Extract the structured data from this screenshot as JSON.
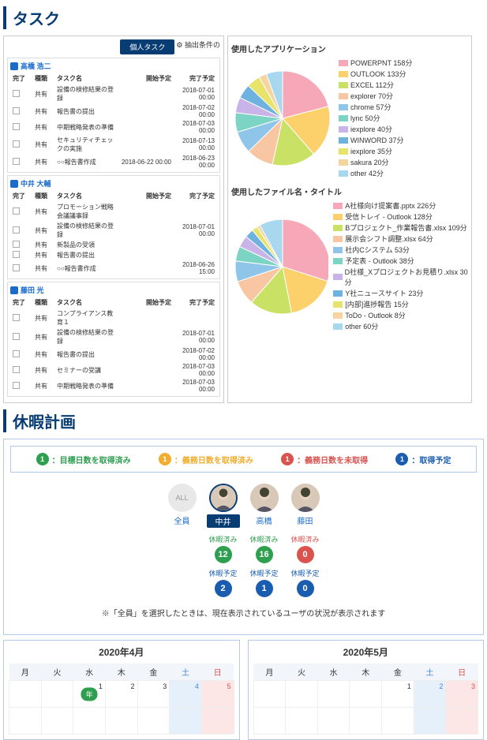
{
  "sections": {
    "task": "タスク",
    "vacation": "休暇計画"
  },
  "tabs": {
    "personal": "個人タスク",
    "filter": "⚙ 抽出条件の"
  },
  "headers": {
    "done": "完了",
    "type": "種類",
    "name": "タスク名",
    "start": "開始予定",
    "end": "完了予定"
  },
  "users": [
    {
      "name": "高橋 浩二",
      "rows": [
        {
          "type": "共有",
          "name": "設備の検修結果の登録",
          "start": "",
          "end": "2018-07-01 00:00"
        },
        {
          "type": "共有",
          "name": "報告書の提出",
          "start": "",
          "end": "2018-07-02 00:00"
        },
        {
          "type": "共有",
          "name": "中期戦略発表の準備",
          "start": "",
          "end": "2018-07-03 00:00"
        },
        {
          "type": "共有",
          "name": "セキュリティチェックの実施",
          "start": "",
          "end": "2018-07-13 00:00"
        },
        {
          "type": "共有",
          "name": "○○報告書作成",
          "start": "2018-06-22 00:00",
          "end": "2018-06-23 00:00"
        }
      ]
    },
    {
      "name": "中井 大輔",
      "rows": [
        {
          "type": "共有",
          "name": "プロモーション戦略会議議事録",
          "start": "",
          "end": ""
        },
        {
          "type": "共有",
          "name": "設備の検修結果の登録",
          "start": "",
          "end": "2018-07-01 00:00"
        },
        {
          "type": "共有",
          "name": "新製品の受領",
          "start": "",
          "end": ""
        },
        {
          "type": "共有",
          "name": "報告書の提出",
          "start": "",
          "end": ""
        },
        {
          "type": "共有",
          "name": "○○報告書作成",
          "start": "",
          "end": "2018-06-26 15:00"
        }
      ]
    },
    {
      "name": "藤田 光",
      "rows": [
        {
          "type": "共有",
          "name": "コンプライアンス教育１",
          "start": "",
          "end": ""
        },
        {
          "type": "共有",
          "name": "設備の検修結果の登録",
          "start": "",
          "end": "2018-07-01 00:00"
        },
        {
          "type": "共有",
          "name": "報告書の提出",
          "start": "",
          "end": "2018-07-02 00:00"
        },
        {
          "type": "共有",
          "name": "セミナーの受講",
          "start": "",
          "end": "2018-07-03 00:00"
        },
        {
          "type": "共有",
          "name": "中期戦略発表の準備",
          "start": "",
          "end": "2018-07-03 00:00"
        }
      ]
    }
  ],
  "charts": {
    "apps": {
      "title": "使用したアプリケーション",
      "items": [
        {
          "label": "POWERPNT 158分",
          "color": "#f7a8b8"
        },
        {
          "label": "OUTLOOK 133分",
          "color": "#fcd06b"
        },
        {
          "label": "EXCEL 112分",
          "color": "#c9e265"
        },
        {
          "label": "explorer 70分",
          "color": "#f9c6a3"
        },
        {
          "label": "chrome 57分",
          "color": "#8ec5e8"
        },
        {
          "label": "lync 50分",
          "color": "#7bd4c4"
        },
        {
          "label": "iexplore 40分",
          "color": "#c8b4e8"
        },
        {
          "label": "WINWORD 37分",
          "color": "#6eb3e0"
        },
        {
          "label": "iexplore 35分",
          "color": "#e7e36b"
        },
        {
          "label": "sakura 20分",
          "color": "#f6d4a0"
        },
        {
          "label": "other 42分",
          "color": "#a7d8ef"
        }
      ]
    },
    "files": {
      "title": "使用したファイル名・タイトル",
      "items": [
        {
          "label": "A社様向け提案書.pptx 226分",
          "color": "#f7a8b8"
        },
        {
          "label": "受信トレイ - Outlook 128分",
          "color": "#fcd06b"
        },
        {
          "label": "Bプロジェクト_作業報告書.xlsx 109分",
          "color": "#c9e265"
        },
        {
          "label": "展示会シフト調整.xlsx 64分",
          "color": "#f9c6a3"
        },
        {
          "label": "社内Cシステム 53分",
          "color": "#8ec5e8"
        },
        {
          "label": "予定表 - Outlook 38分",
          "color": "#7bd4c4"
        },
        {
          "label": "D社様_Xプロジェクトお見積り.xlsx 30分",
          "color": "#c8b4e8"
        },
        {
          "label": "Y社ニュースサイト 23分",
          "color": "#6eb3e0"
        },
        {
          "label": "[内部]進捗報告 15分",
          "color": "#e7e36b"
        },
        {
          "label": "ToDo - Outlook 8分",
          "color": "#f6d4a0"
        },
        {
          "label": "other 60分",
          "color": "#a7d8ef"
        }
      ]
    }
  },
  "statusLegend": [
    {
      "num": "1",
      "label": "：目標日数を取得済み",
      "color": "#2e9e4f"
    },
    {
      "num": "1",
      "label": "：義務日数を取得済み",
      "color": "#f0ad2e"
    },
    {
      "num": "1",
      "label": "：義務日数を未取得",
      "color": "#d9534f"
    },
    {
      "num": "1",
      "label": "：取得予定",
      "color": "#1a5db0"
    }
  ],
  "people": [
    {
      "label": "全員",
      "all": true
    },
    {
      "label": "中井",
      "selected": true
    },
    {
      "label": "高橋"
    },
    {
      "label": "藤田"
    }
  ],
  "stats": {
    "taken": {
      "label": "休暇済み"
    },
    "planned": {
      "label": "休暇予定"
    },
    "row1": [
      {
        "val": "12",
        "color": "#2e9e4f"
      },
      {
        "val": "16",
        "color": "#2e9e4f"
      },
      {
        "val": "0",
        "color": "#d9534f"
      }
    ],
    "row2": [
      {
        "val": "2",
        "color": "#1a5db0"
      },
      {
        "val": "1",
        "color": "#1a5db0"
      },
      {
        "val": "0",
        "color": "#1a5db0"
      }
    ]
  },
  "note": "※「全員」を選択したときは、現在表示されているユーザの状況が表示されます",
  "calendars": {
    "dow": [
      "月",
      "火",
      "水",
      "木",
      "金",
      "土",
      "日"
    ],
    "left": {
      "title": "2020年4月",
      "firstRow": [
        "",
        "",
        "1",
        "2",
        "3",
        "4",
        "5"
      ],
      "nenCell": 2
    },
    "right": {
      "title": "2020年5月",
      "firstRow": [
        "",
        "",
        "",
        "",
        "1",
        "2",
        "3"
      ]
    }
  },
  "yearPill": "年"
}
